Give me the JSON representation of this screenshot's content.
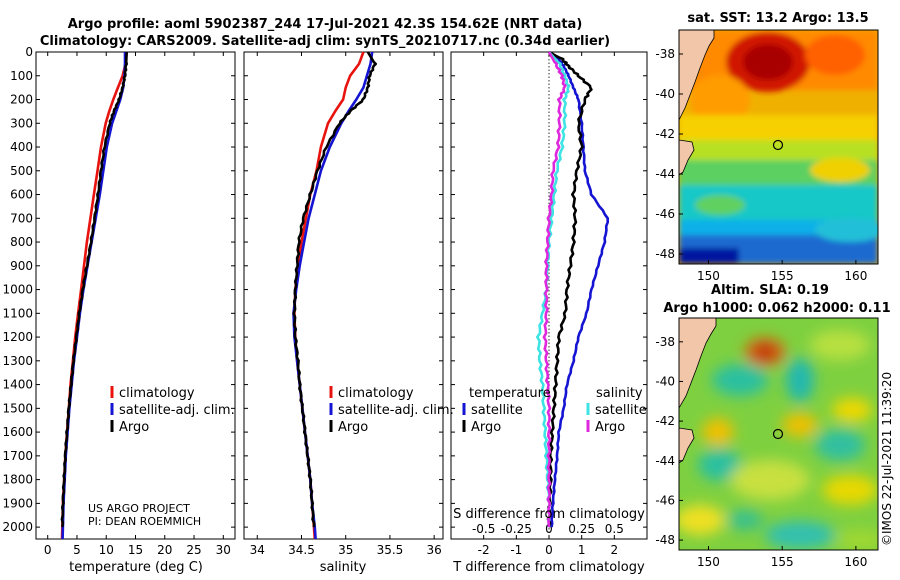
{
  "header": {
    "line1": "Argo profile: aoml 5902387_244 17-Jul-2021 42.3S 154.62E (NRT data)",
    "line2": "Climatology: CARS2009. Satellite-adj clim: synTS_20210717.nc (0.34d earlier)"
  },
  "credit": {
    "line1": "US ARGO PROJECT",
    "line2": "PI: DEAN ROEMMICH"
  },
  "watermark": "©IMOS 22-Jul-2021 11:39:20",
  "colors": {
    "climatology": "#e8130e",
    "satellite": "#1414d2",
    "argo": "#000000",
    "sal_sat": "#3ee3e3",
    "sal_argo": "#de28de"
  },
  "chart_data": [
    {
      "id": "temperature",
      "type": "line",
      "xlabel": "temperature (deg C)",
      "ylabel": "",
      "xlim": [
        -2,
        32
      ],
      "ylim": [
        2050,
        0
      ],
      "xticks": [
        0,
        5,
        10,
        15,
        20,
        25,
        30
      ],
      "xtick_labels": [
        "0",
        "5",
        "10",
        "15",
        "20",
        "25",
        "30"
      ],
      "yticks": [
        0,
        100,
        200,
        300,
        400,
        500,
        600,
        700,
        800,
        900,
        1000,
        1100,
        1200,
        1300,
        1400,
        1500,
        1600,
        1700,
        1800,
        1900,
        2000
      ],
      "ytick_labels": [
        "0",
        "100",
        "200",
        "300",
        "400",
        "500",
        "600",
        "700",
        "800",
        "900",
        "1000",
        "1100",
        "1200",
        "1300",
        "1400",
        "1500",
        "1600",
        "1700",
        "1800",
        "1900",
        "2000"
      ],
      "legend": [
        "climatology",
        "satellite-adj. clim.",
        "Argo"
      ],
      "legend_position": "lower-right",
      "series": [
        {
          "name": "climatology",
          "color_key": "climatology",
          "depth": [
            0,
            50,
            100,
            150,
            200,
            250,
            300,
            400,
            500,
            600,
            700,
            800,
            900,
            1000,
            1100,
            1200,
            1300,
            1400,
            1500,
            1600,
            1700,
            1800,
            1900,
            2000,
            2050
          ],
          "values": [
            13.5,
            13.3,
            12.8,
            12.0,
            11.2,
            10.5,
            9.9,
            9.1,
            8.5,
            7.9,
            7.3,
            6.7,
            6.2,
            5.7,
            5.2,
            4.7,
            4.3,
            3.9,
            3.6,
            3.3,
            3.0,
            2.8,
            2.6,
            2.5,
            2.45
          ]
        },
        {
          "name": "satellite-adj. clim.",
          "color_key": "satellite",
          "depth": [
            0,
            50,
            100,
            150,
            200,
            250,
            300,
            400,
            500,
            600,
            700,
            800,
            900,
            1000,
            1100,
            1200,
            1300,
            1400,
            1500,
            1600,
            1700,
            1800,
            1900,
            2000,
            2050
          ],
          "values": [
            13.2,
            13.2,
            13.1,
            12.9,
            12.4,
            11.7,
            11.0,
            10.1,
            9.5,
            8.9,
            8.2,
            7.5,
            6.8,
            6.1,
            5.5,
            5.0,
            4.5,
            4.1,
            3.7,
            3.4,
            3.1,
            2.9,
            2.7,
            2.6,
            2.55
          ]
        },
        {
          "name": "Argo",
          "color_key": "argo",
          "depth": [
            0,
            50,
            100,
            150,
            200,
            250,
            300,
            400,
            500,
            600,
            700,
            800,
            900,
            1000,
            1100,
            1200,
            1300,
            1400,
            1500,
            1600,
            1700,
            1800,
            1900,
            2000
          ],
          "values": [
            13.5,
            13.4,
            13.2,
            12.8,
            12.2,
            11.3,
            10.6,
            9.7,
            9.1,
            8.6,
            8.0,
            7.4,
            6.7,
            6.0,
            5.4,
            4.9,
            4.4,
            4.0,
            3.6,
            3.3,
            3.0,
            2.8,
            2.6,
            2.5
          ]
        }
      ]
    },
    {
      "id": "salinity",
      "type": "line",
      "xlabel": "salinity",
      "ylabel": "",
      "xlim": [
        33.85,
        36.1
      ],
      "ylim": [
        2050,
        0
      ],
      "xticks": [
        34,
        34.5,
        35,
        35.5,
        36
      ],
      "xtick_labels": [
        "34",
        "34.5",
        "35",
        "35.5",
        "36"
      ],
      "legend": [
        "climatology",
        "satellite-adj. clim.",
        "Argo"
      ],
      "legend_position": "lower-right",
      "series": [
        {
          "name": "climatology",
          "color_key": "climatology",
          "depth": [
            0,
            50,
            100,
            150,
            200,
            250,
            300,
            400,
            500,
            600,
            700,
            800,
            900,
            1000,
            1100,
            1200,
            1300,
            1400,
            1500,
            1600,
            1700,
            1800,
            1900,
            2000,
            2050
          ],
          "values": [
            35.2,
            35.15,
            35.05,
            35.0,
            34.97,
            34.88,
            34.8,
            34.72,
            34.67,
            34.6,
            34.55,
            34.5,
            34.46,
            34.43,
            34.42,
            34.43,
            34.45,
            34.48,
            34.51,
            34.54,
            34.57,
            34.6,
            34.62,
            34.64,
            34.65
          ]
        },
        {
          "name": "satellite-adj. clim.",
          "color_key": "satellite",
          "depth": [
            0,
            50,
            100,
            150,
            200,
            250,
            300,
            400,
            500,
            600,
            700,
            800,
            900,
            1000,
            1100,
            1200,
            1300,
            1400,
            1500,
            1600,
            1700,
            1800,
            1900,
            2000,
            2050
          ],
          "values": [
            35.3,
            35.28,
            35.24,
            35.2,
            35.12,
            35.03,
            34.95,
            34.82,
            34.72,
            34.65,
            34.58,
            34.53,
            34.48,
            34.44,
            34.41,
            34.42,
            34.45,
            34.48,
            34.51,
            34.54,
            34.57,
            34.6,
            34.62,
            34.65,
            34.66
          ]
        },
        {
          "name": "Argo",
          "color_key": "argo",
          "depth": [
            0,
            50,
            100,
            150,
            200,
            250,
            300,
            400,
            500,
            600,
            700,
            800,
            900,
            1000,
            1100,
            1200,
            1300,
            1400,
            1500,
            1600,
            1700,
            1800,
            1900,
            2000
          ],
          "values": [
            35.25,
            35.33,
            35.27,
            35.25,
            35.2,
            35.05,
            34.93,
            34.78,
            34.68,
            34.6,
            34.52,
            34.47,
            34.45,
            34.43,
            34.42,
            34.43,
            34.46,
            34.48,
            34.51,
            34.54,
            34.57,
            34.6,
            34.62,
            34.64
          ]
        }
      ]
    },
    {
      "id": "differences",
      "type": "line",
      "xlabel": "T difference from climatology",
      "xlabel2": "S difference from climatology",
      "xlim": [
        -3,
        3
      ],
      "xlim_salinity": [
        -0.75,
        0.75
      ],
      "ylim": [
        2050,
        0
      ],
      "xticks": [
        -2,
        -1,
        0,
        1,
        2
      ],
      "xtick_labels": [
        "-2",
        "-1",
        "0",
        "1",
        "2"
      ],
      "xticks2": [
        -0.5,
        -0.25,
        0,
        0.25,
        0.5
      ],
      "xtick2_labels": [
        "-0.5",
        "-0.25",
        "0",
        "0.25",
        "0.5"
      ],
      "legend_t_title": "temperature",
      "legend_s_title": "salinity",
      "legend_t": [
        "satellite",
        "Argo"
      ],
      "legend_s": [
        "satellite",
        "Argo"
      ],
      "series": [
        {
          "name": "T satellite",
          "color_key": "satellite",
          "depth": [
            0,
            30,
            60,
            100,
            150,
            200,
            300,
            400,
            500,
            600,
            700,
            800,
            900,
            1000,
            1100,
            1200,
            1300,
            1400,
            1500,
            1600,
            1700,
            1800,
            1900,
            2000
          ],
          "values": [
            0.0,
            0.3,
            0.45,
            0.6,
            0.75,
            0.9,
            1.0,
            1.05,
            1.1,
            1.3,
            1.8,
            1.7,
            1.5,
            1.3,
            1.15,
            0.9,
            0.75,
            0.55,
            0.45,
            0.3,
            0.25,
            0.18,
            0.12,
            0.08
          ]
        },
        {
          "name": "T Argo",
          "color_key": "argo",
          "depth": [
            0,
            30,
            60,
            100,
            150,
            200,
            300,
            400,
            500,
            600,
            700,
            800,
            900,
            1000,
            1100,
            1200,
            1300,
            1400,
            1500,
            1600,
            1700,
            1800,
            1900,
            2000
          ],
          "values": [
            0.0,
            0.4,
            0.6,
            0.9,
            1.3,
            1.1,
            0.9,
            1.0,
            0.85,
            0.75,
            0.8,
            0.75,
            0.65,
            0.55,
            0.5,
            0.3,
            0.25,
            0.2,
            0.15,
            0.1,
            0.05,
            0.05,
            0.02,
            0.0
          ]
        },
        {
          "name": "S satellite",
          "color_key": "sal_sat",
          "depth": [
            0,
            50,
            100,
            150,
            200,
            300,
            400,
            500,
            600,
            700,
            800,
            900,
            1000,
            1100,
            1200,
            1300,
            1400,
            1500,
            1600,
            1700,
            1800,
            1900,
            2000
          ],
          "values": [
            0.0,
            0.08,
            0.12,
            0.15,
            0.12,
            0.12,
            0.1,
            0.06,
            0.04,
            0.02,
            0.0,
            -0.01,
            -0.02,
            -0.05,
            -0.08,
            -0.07,
            -0.05,
            -0.04,
            -0.03,
            -0.02,
            -0.01,
            0.0,
            0.0
          ]
        },
        {
          "name": "S Argo",
          "color_key": "sal_argo",
          "depth": [
            0,
            50,
            100,
            150,
            200,
            300,
            400,
            500,
            600,
            700,
            800,
            900,
            1000,
            1100,
            1200,
            1300,
            1400,
            1500,
            1600,
            1700,
            1800,
            1900,
            2000
          ],
          "values": [
            0.0,
            0.05,
            0.1,
            0.12,
            0.08,
            0.08,
            0.07,
            0.03,
            0.02,
            0.0,
            -0.01,
            -0.02,
            -0.02,
            -0.02,
            -0.03,
            -0.02,
            -0.01,
            0.0,
            0.0,
            0.0,
            0.0,
            0.0,
            0.0
          ]
        }
      ]
    },
    {
      "id": "sst-map",
      "type": "heatmap",
      "title": "sat. SST: 13.2 Argo: 13.5",
      "xlim": [
        148,
        161.5
      ],
      "ylim": [
        -48.5,
        -36.8
      ],
      "xticks": [
        150,
        155,
        160
      ],
      "xtick_labels": [
        "150",
        "155",
        "160"
      ],
      "yticks": [
        -38,
        -40,
        -42,
        -44,
        -46,
        -48
      ],
      "ytick_labels": [
        "-38",
        "-40",
        "-42",
        "-44",
        "-46",
        "-48"
      ],
      "float_position": {
        "lon": 154.62,
        "lat": -42.3
      }
    },
    {
      "id": "sla-map",
      "type": "heatmap",
      "title": "Altim. SLA: 0.19",
      "title2": "Argo h1000: 0.062 h2000: 0.11",
      "xlim": [
        148,
        161.5
      ],
      "ylim": [
        -48.5,
        -36.8
      ],
      "xticks": [
        150,
        155,
        160
      ],
      "xtick_labels": [
        "150",
        "155",
        "160"
      ],
      "yticks": [
        -38,
        -40,
        -42,
        -44,
        -46,
        -48
      ],
      "ytick_labels": [
        "-38",
        "-40",
        "-42",
        "-44",
        "-46",
        "-48"
      ],
      "float_position": {
        "lon": 154.62,
        "lat": -42.3
      }
    }
  ]
}
